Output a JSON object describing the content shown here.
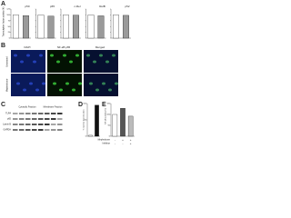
{
  "panel_a": {
    "label": "A",
    "y_label": "Transcription factor activity (%)",
    "ylim": [
      0,
      125
    ],
    "yticks": [
      0,
      25,
      50,
      75,
      100,
      125
    ],
    "colors": [
      "#ffffff",
      "#9a9a9a"
    ],
    "charts": [
      {
        "title": "p50",
        "values": [
          100,
          97
        ]
      },
      {
        "title": "p65",
        "values": [
          100,
          95
        ]
      },
      {
        "title": "c-Rel",
        "values": [
          100,
          99
        ]
      },
      {
        "title": "RelB",
        "values": [
          100,
          96
        ]
      },
      {
        "title": "p52",
        "values": [
          100,
          98
        ]
      }
    ]
  },
  "panel_b": {
    "label": "B",
    "columns": [
      "DAPI",
      "NF-κB p65",
      "Merged"
    ],
    "rows": [
      "Untreated",
      "Mephedrone"
    ]
  },
  "panel_c": {
    "label": "C",
    "fractions": [
      "Cytosolic Fraction",
      "Membrane Fraction"
    ],
    "bands": [
      "TLR4",
      "p65",
      "Lamin B",
      "GAPDH"
    ]
  },
  "panel_d": {
    "label": "D",
    "y_label": "% nuclear translocation",
    "ylim": [
      0,
      100
    ],
    "yticks": [
      0,
      50,
      100
    ],
    "colors": [
      "#ffffff",
      "#111111"
    ],
    "values": [
      3,
      95
    ]
  },
  "panel_e": {
    "label": "E",
    "y_label": "NF-κB activity (%)",
    "ylim": [
      0,
      150
    ],
    "yticks": [
      0,
      50,
      100,
      150
    ],
    "colors": [
      "#ffffff",
      "#555555",
      "#bbbbbb"
    ],
    "values": [
      100,
      128,
      92
    ],
    "conditions": [
      {
        "name": "Mephedrone",
        "marks": [
          "-",
          "+",
          "+"
        ]
      },
      {
        "name": "Inhibitor",
        "marks": [
          "-",
          "-",
          "+"
        ]
      }
    ]
  }
}
